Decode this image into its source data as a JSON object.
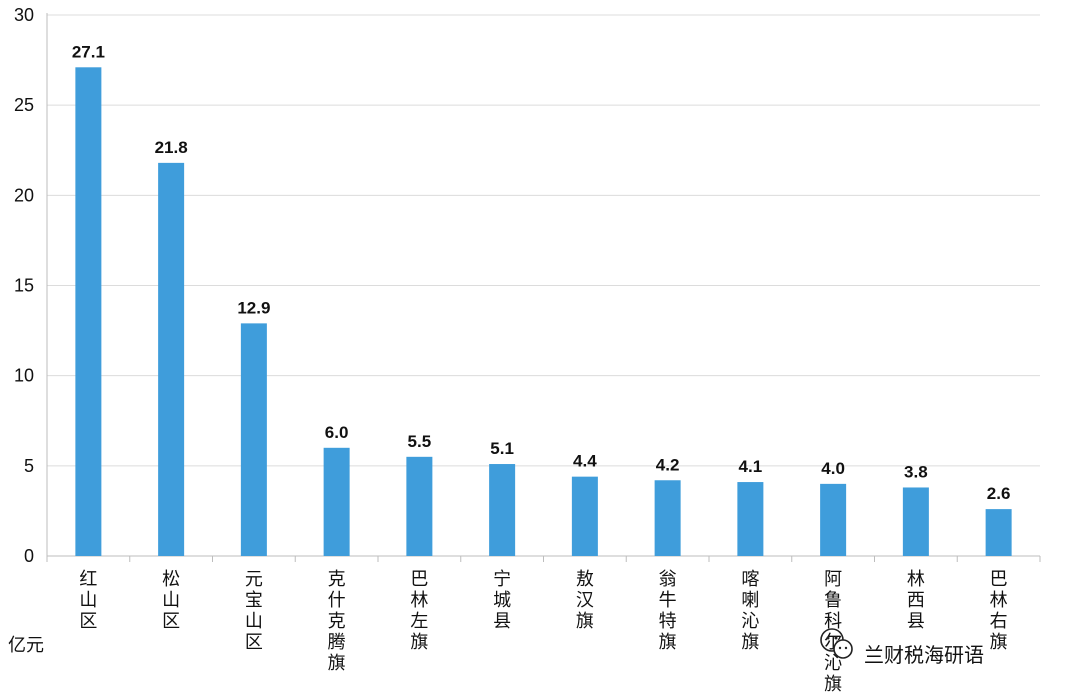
{
  "chart_data": {
    "type": "bar",
    "categories": [
      "红山区",
      "松山区",
      "元宝山区",
      "克什克腾旗",
      "巴林左旗",
      "宁城县",
      "敖汉旗",
      "翁牛特旗",
      "喀喇沁旗",
      "阿鲁科尔沁旗",
      "林西县",
      "巴林右旗"
    ],
    "values": [
      27.1,
      21.8,
      12.9,
      6.0,
      5.5,
      5.1,
      4.4,
      4.2,
      4.1,
      4.0,
      3.8,
      2.6
    ],
    "data_labels": [
      "27.1",
      "21.8",
      "12.9",
      "6.0",
      "5.5",
      "5.1",
      "4.4",
      "4.2",
      "4.1",
      "4.0",
      "3.8",
      "2.6"
    ],
    "yticks": [
      "0",
      "5",
      "10",
      "15",
      "20",
      "25",
      "30"
    ],
    "ylim": [
      0,
      30
    ],
    "ylabel": "亿元",
    "grid": true,
    "bar_color": "#3f9ddb"
  },
  "watermark": {
    "text": "兰财税海研语"
  }
}
